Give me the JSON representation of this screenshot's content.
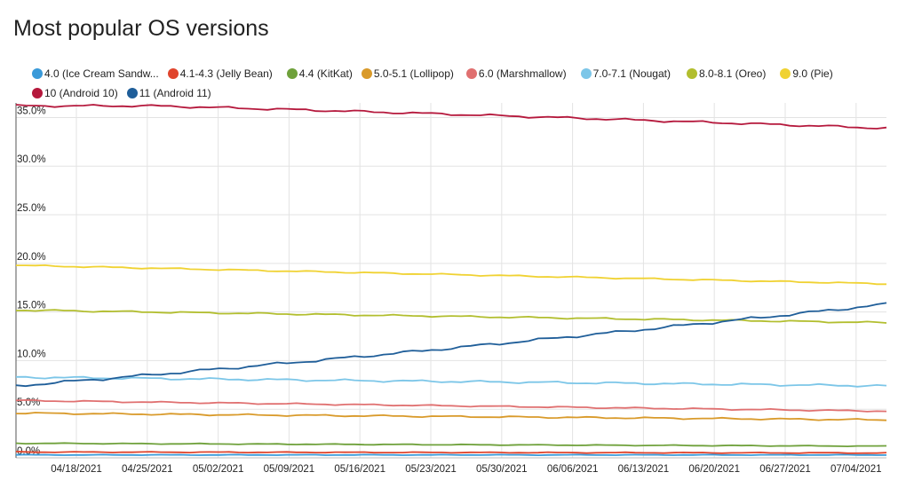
{
  "chart_data": {
    "type": "line",
    "title": "Most popular OS versions",
    "x": [
      "04/18/2021",
      "04/25/2021",
      "05/02/2021",
      "05/09/2021",
      "05/16/2021",
      "05/23/2021",
      "05/30/2021",
      "06/06/2021",
      "06/13/2021",
      "06/20/2021",
      "06/27/2021",
      "07/04/2021"
    ],
    "y_ticks": [
      "0.0%",
      "5.0%",
      "10.0%",
      "15.0%",
      "20.0%",
      "25.0%",
      "30.0%",
      "35.0%"
    ],
    "ylim": [
      0,
      36.5
    ],
    "grid": true,
    "legend": "top",
    "series": [
      {
        "name": "4.0 (Ice Cream Sandw...",
        "color": "#3a9ad9",
        "start": 0.3,
        "end": 0.3,
        "wiggle": 0.02
      },
      {
        "name": "4.1-4.3 (Jelly Bean)",
        "color": "#e0452d",
        "start": 0.6,
        "end": 0.5,
        "wiggle": 0.03
      },
      {
        "name": "4.4 (KitKat)",
        "color": "#6fa13b",
        "start": 1.5,
        "end": 1.2,
        "wiggle": 0.03
      },
      {
        "name": "5.0-5.1 (Lollipop)",
        "color": "#d99a2a",
        "start": 4.6,
        "end": 3.9,
        "wiggle": 0.06
      },
      {
        "name": "6.0 (Marshmallow)",
        "color": "#e07070",
        "start": 5.9,
        "end": 4.8,
        "wiggle": 0.05
      },
      {
        "name": "7.0-7.1 (Nougat)",
        "color": "#7cc6e8",
        "start": 8.3,
        "end": 7.4,
        "wiggle": 0.08
      },
      {
        "name": "8.0-8.1 (Oreo)",
        "color": "#b2be2e",
        "start": 15.2,
        "end": 13.9,
        "wiggle": 0.06
      },
      {
        "name": "9.0 (Pie)",
        "color": "#f0d232",
        "start": 19.8,
        "end": 17.9,
        "wiggle": 0.05
      },
      {
        "name": "10 (Android 10)",
        "color": "#b5183c",
        "start": 36.2,
        "end": 33.9,
        "wiggle": 0.08
      },
      {
        "name": "11 (Android 11)",
        "color": "#1f5e99",
        "start": 7.4,
        "end": 15.8,
        "wiggle": 0.1
      }
    ]
  }
}
